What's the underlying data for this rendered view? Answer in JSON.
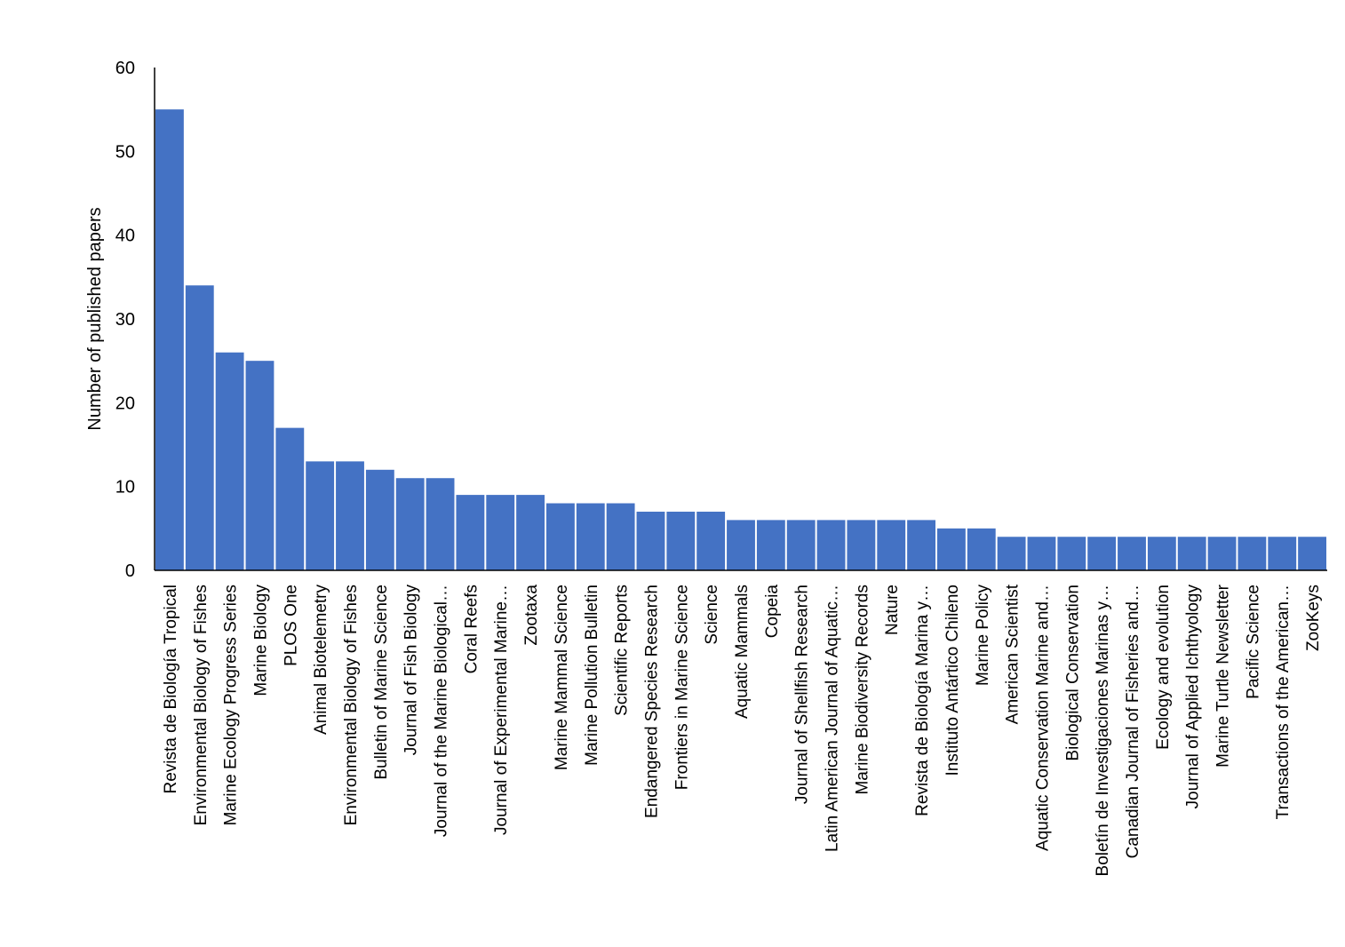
{
  "chart_data": {
    "type": "bar",
    "title": "",
    "xlabel": "",
    "ylabel": "Number of published papers",
    "ylim": [
      0,
      60
    ],
    "yticks": [
      0,
      10,
      20,
      30,
      40,
      50,
      60
    ],
    "grid": false,
    "legend": "none",
    "bar_color": "#4472C4",
    "categories": [
      "Revista de Biología Tropical",
      "Environmental Biology of Fishes",
      "Marine Ecology Progress Series",
      "Marine Biology",
      "PLOS One",
      "Animal Biotelemetry",
      "Environmental Biology of Fishes",
      "Bulletin of Marine Science",
      "Journal of Fish Biology",
      "Journal of the Marine Biological…",
      "Coral Reefs",
      "Journal of Experimental Marine…",
      "Zootaxa",
      "Marine Mammal Science",
      "Marine Pollution Bulletin",
      "Scientific Reports",
      "Endangered Species Research",
      "Frontiers in Marine Science",
      "Science",
      "Aquatic Mammals",
      "Copeia",
      "Journal of Shellfish Research",
      "Latin American Journal of Aquatic…",
      "Marine Biodiversity Records",
      "Nature",
      "Revista de Biología Marina y…",
      "Instituto Antártico Chileno",
      "Marine Policy",
      "American Scientist",
      "Aquatic Conservation Marine and…",
      "Biological Conservation",
      "Boletín de Investigaciones Marinas y…",
      "Canadian Journal of Fisheries and…",
      "Ecology and evolution",
      "Journal of Applied Ichthyology",
      "Marine Turtle Newsletter",
      "Pacific Science",
      "Transactions of the American…",
      "ZooKeys"
    ],
    "values": [
      55,
      34,
      26,
      25,
      17,
      13,
      13,
      12,
      11,
      11,
      9,
      9,
      9,
      8,
      8,
      8,
      7,
      7,
      7,
      6,
      6,
      6,
      6,
      6,
      6,
      6,
      5,
      5,
      4,
      4,
      4,
      4,
      4,
      4,
      4,
      4,
      4,
      4,
      4
    ]
  }
}
